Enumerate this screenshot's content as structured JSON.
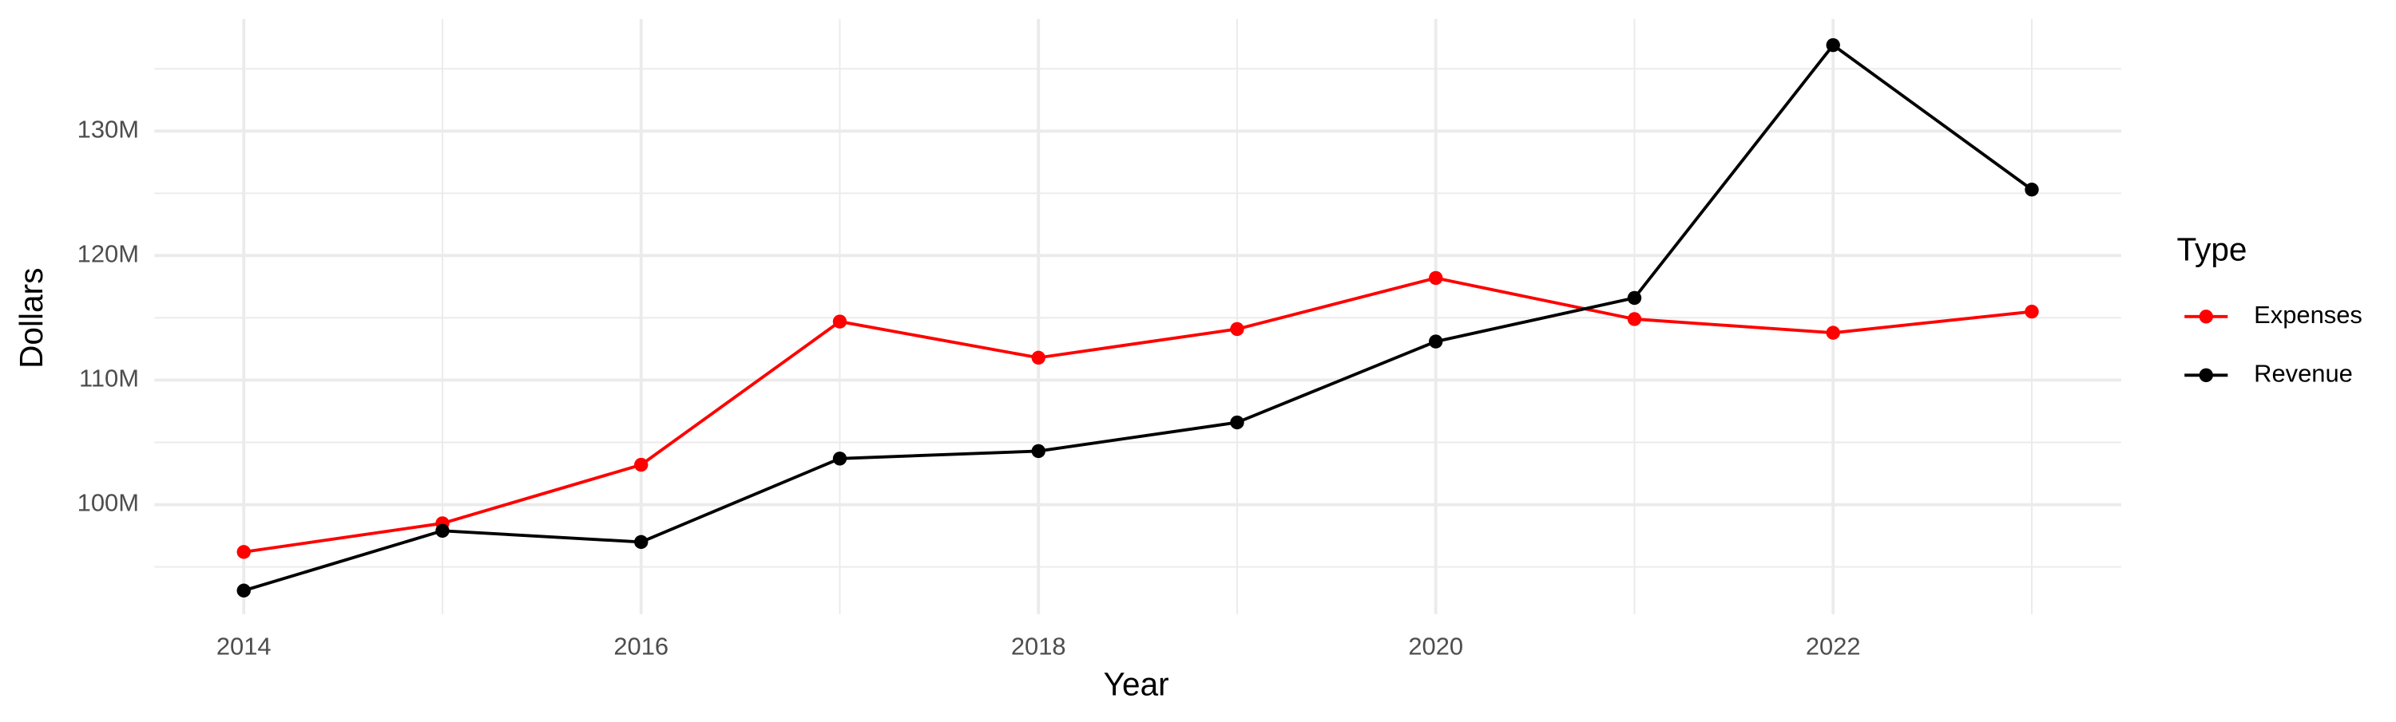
{
  "chart_data": {
    "type": "line",
    "x_label": "Year",
    "y_label": "Dollars",
    "legend_title": "Type",
    "x": [
      2014,
      2015,
      2016,
      2017,
      2018,
      2019,
      2020,
      2021,
      2022,
      2023
    ],
    "series": [
      {
        "name": "Expenses",
        "color": "#ff0000",
        "values": [
          96200000,
          98500000,
          103200000,
          114700000,
          111800000,
          114100000,
          118200000,
          114900000,
          113800000,
          115500000
        ]
      },
      {
        "name": "Revenue",
        "color": "#000000",
        "values": [
          93100000,
          97900000,
          97000000,
          103700000,
          104300000,
          106600000,
          113100000,
          116600000,
          136900000,
          125300000
        ]
      }
    ],
    "xlim": [
      2013.55,
      2023.45
    ],
    "xticks": [
      2014,
      2016,
      2018,
      2020,
      2022
    ],
    "ylim": [
      91200000,
      139000000
    ],
    "yticks": [
      {
        "value": 100000000,
        "label": "100M"
      },
      {
        "value": 110000000,
        "label": "110M"
      },
      {
        "value": 120000000,
        "label": "120M"
      },
      {
        "value": 130000000,
        "label": "130M"
      }
    ],
    "grid": true,
    "legend_position": "right"
  }
}
